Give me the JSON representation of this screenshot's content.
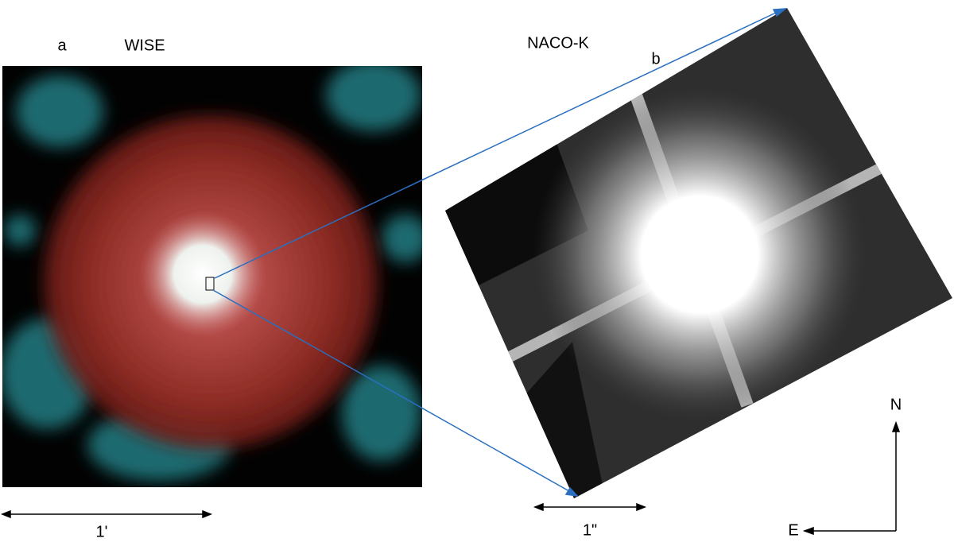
{
  "panel_a": {
    "label": "a",
    "title": "WISE",
    "scale": "1'"
  },
  "panel_b": {
    "label": "b",
    "title": "NACO-K",
    "scale": "1\""
  },
  "compass": {
    "north": "N",
    "east": "E"
  }
}
